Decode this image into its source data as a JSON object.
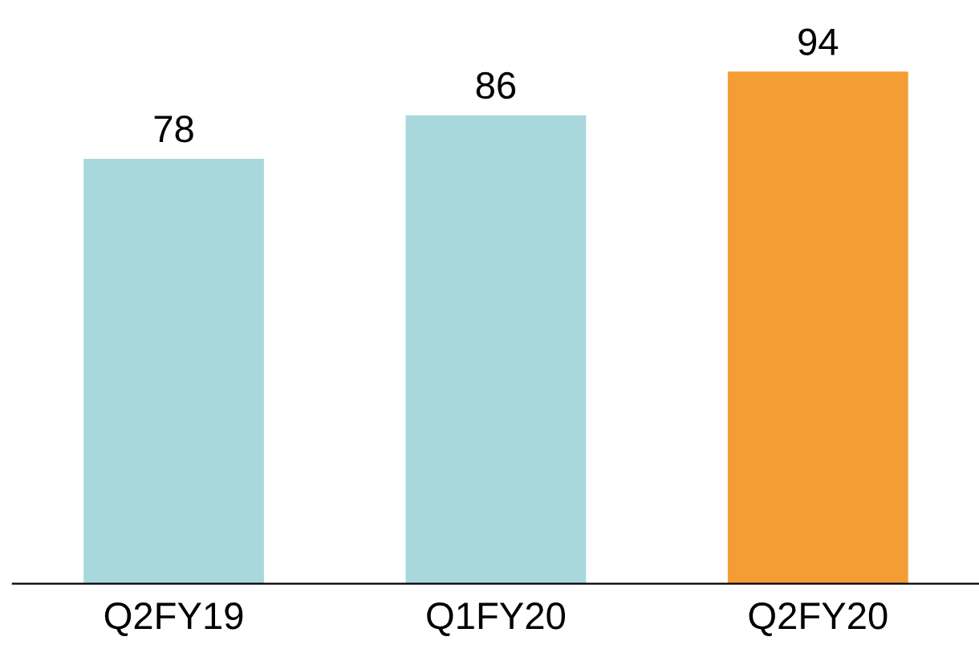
{
  "chart_data": {
    "type": "bar",
    "categories": [
      "Q2FY19",
      "Q1FY20",
      "Q2FY20"
    ],
    "values": [
      78,
      86,
      94
    ],
    "colors": [
      "#a8d8dc",
      "#a8d8dc",
      "#f59d35"
    ],
    "data_labels": true,
    "grid": false,
    "legend": false,
    "tick_labels": "x"
  }
}
